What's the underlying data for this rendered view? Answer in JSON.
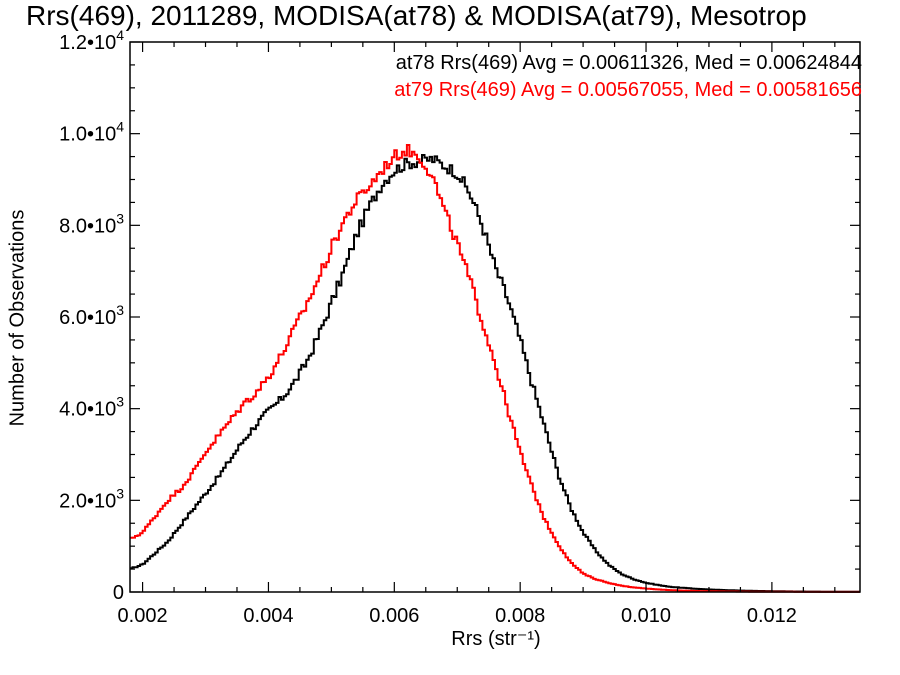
{
  "chart_data": {
    "type": "line",
    "title": "Rrs(469), 2011289, MODISA(at78) & MODISA(at79), Mesotrop",
    "xlabel": "Rrs (str⁻¹)",
    "ylabel": "Number of Observations",
    "xlim": [
      0.0018,
      0.0134
    ],
    "ylim": [
      0,
      12000
    ],
    "x_ticks": [
      {
        "value": 0.002,
        "label": "0.002"
      },
      {
        "value": 0.004,
        "label": "0.004"
      },
      {
        "value": 0.006,
        "label": "0.006"
      },
      {
        "value": 0.008,
        "label": "0.008"
      },
      {
        "value": 0.01,
        "label": "0.010"
      },
      {
        "value": 0.012,
        "label": "0.012"
      }
    ],
    "y_ticks": [
      {
        "value": 0,
        "mant": "0",
        "exp": ""
      },
      {
        "value": 2000,
        "mant": "2.0•10",
        "exp": "3"
      },
      {
        "value": 4000,
        "mant": "4.0•10",
        "exp": "3"
      },
      {
        "value": 6000,
        "mant": "6.0•10",
        "exp": "3"
      },
      {
        "value": 8000,
        "mant": "8.0•10",
        "exp": "3"
      },
      {
        "value": 10000,
        "mant": "1.0•10",
        "exp": "4"
      },
      {
        "value": 12000,
        "mant": "1.2•10",
        "exp": "4"
      }
    ],
    "legend_position": "top-right",
    "series": [
      {
        "name": "at78",
        "legend_text": "at78 Rrs(469) Avg = 0.00611326, Med = 0.00624844",
        "color": "#000000",
        "x": [
          0.0018,
          0.002,
          0.0022,
          0.0024,
          0.0026,
          0.0028,
          0.003,
          0.0032,
          0.0034,
          0.0036,
          0.0038,
          0.004,
          0.0042,
          0.0044,
          0.0046,
          0.0048,
          0.005,
          0.0052,
          0.0054,
          0.0056,
          0.0058,
          0.006,
          0.0062,
          0.0064,
          0.0066,
          0.0068,
          0.007,
          0.0072,
          0.0074,
          0.0076,
          0.0078,
          0.008,
          0.0082,
          0.0084,
          0.0086,
          0.0088,
          0.009,
          0.0092,
          0.0094,
          0.0096,
          0.0098,
          0.01,
          0.0102,
          0.0104,
          0.0106,
          0.0108,
          0.011,
          0.0112,
          0.0114,
          0.0116,
          0.0118,
          0.012,
          0.0122,
          0.0124,
          0.0126,
          0.0128,
          0.013,
          0.0132,
          0.0134
        ],
        "y": [
          500,
          600,
          850,
          1100,
          1450,
          1800,
          2150,
          2500,
          2900,
          3300,
          3650,
          3950,
          4200,
          4550,
          5000,
          5600,
          6300,
          7000,
          7800,
          8400,
          8900,
          9200,
          9350,
          9400,
          9450,
          9300,
          9150,
          8700,
          8000,
          7100,
          6400,
          5500,
          4500,
          3550,
          2600,
          1850,
          1300,
          900,
          600,
          400,
          280,
          200,
          150,
          110,
          90,
          70,
          55,
          45,
          35,
          28,
          22,
          18,
          14,
          11,
          9,
          7,
          6,
          5,
          4
        ]
      },
      {
        "name": "at79",
        "legend_text": "at79 Rrs(469) Avg = 0.00567055, Med = 0.00581656",
        "color": "#ff0000",
        "x": [
          0.0018,
          0.002,
          0.0022,
          0.0024,
          0.0026,
          0.0028,
          0.003,
          0.0032,
          0.0034,
          0.0036,
          0.0038,
          0.004,
          0.0042,
          0.0044,
          0.0046,
          0.0048,
          0.005,
          0.0052,
          0.0054,
          0.0056,
          0.0058,
          0.006,
          0.0062,
          0.0064,
          0.0066,
          0.0068,
          0.007,
          0.0072,
          0.0074,
          0.0076,
          0.0078,
          0.008,
          0.0082,
          0.0084,
          0.0086,
          0.0088,
          0.009,
          0.0092,
          0.0094,
          0.0096,
          0.0098,
          0.01,
          0.0102,
          0.0104,
          0.0106,
          0.0108,
          0.011,
          0.0112,
          0.0114,
          0.0116,
          0.0118,
          0.012,
          0.0122,
          0.0124,
          0.0126,
          0.0128,
          0.013,
          0.0132,
          0.0134
        ],
        "y": [
          1150,
          1300,
          1650,
          2000,
          2250,
          2600,
          3050,
          3400,
          3750,
          4100,
          4350,
          4700,
          5150,
          5700,
          6250,
          6850,
          7500,
          8100,
          8550,
          8850,
          9200,
          9500,
          9650,
          9500,
          9100,
          8300,
          7600,
          6800,
          5900,
          5000,
          4000,
          3050,
          2250,
          1550,
          1050,
          650,
          400,
          280,
          200,
          140,
          100,
          75,
          55,
          40,
          30,
          22,
          17,
          13,
          10,
          8,
          6,
          5,
          4,
          3,
          3,
          2,
          2,
          2,
          1
        ]
      }
    ]
  }
}
